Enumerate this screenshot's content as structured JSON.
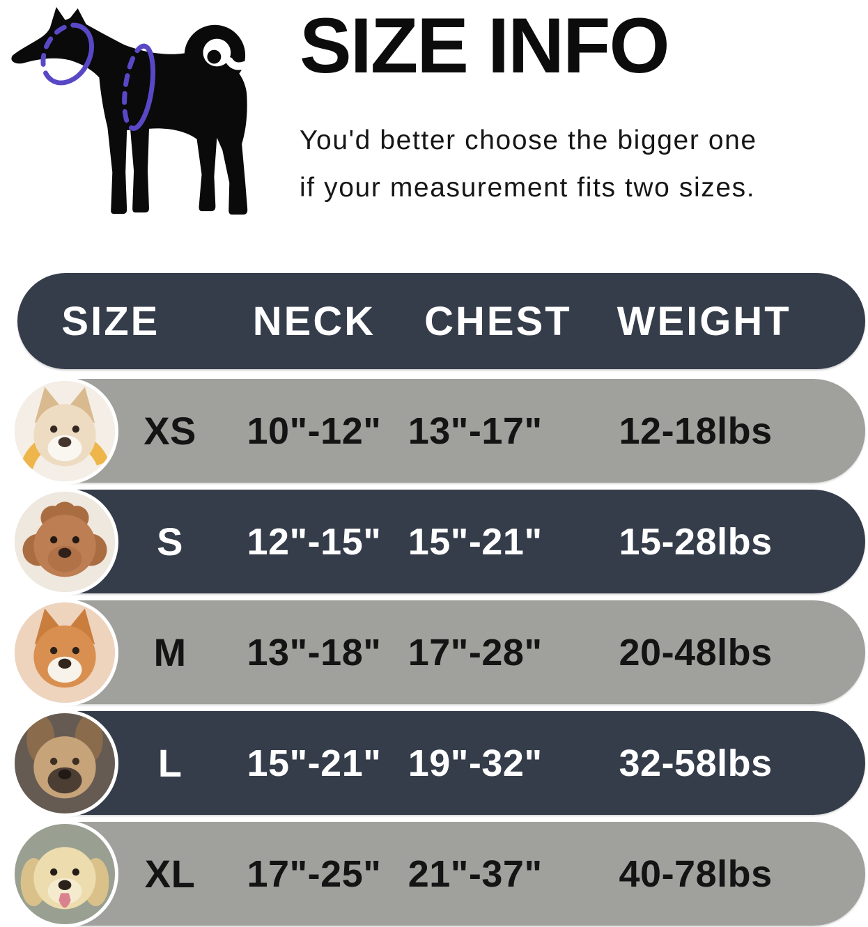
{
  "hero": {
    "title": "SIZE INFO",
    "subtitle_line1": "You'd better choose the bigger one",
    "subtitle_line2": "if your measurement fits two sizes.",
    "diagram": {
      "description": "black dog silhouette with measuring rings around neck and chest",
      "silhouette_color": "#0a0a0a",
      "ring_color": "#5948c6"
    }
  },
  "colors": {
    "background": "#ffffff",
    "dark_navy": "#353d4b",
    "gray": "#a0a09c",
    "text_dark": "#141414",
    "text_light": "#ffffff",
    "photo_ring": "#ffffff"
  },
  "table": {
    "columns": [
      "SIZE",
      "NECK",
      "CHEST",
      "WEIGHT"
    ],
    "rows": [
      {
        "size": "XS",
        "neck": "10\"-12\"",
        "chest": "13\"-17\"",
        "weight": "12-18lbs",
        "theme": "gray",
        "photo": "pomeranian-puppy-photo",
        "palette": {
          "ears": "point",
          "bg": "#f4eee6",
          "arc": "#eeb54a",
          "fur": "#eddcc2",
          "ear": "#d9b98e",
          "muzzle": "#faf6f0",
          "nose": "#44362c",
          "eye": "#32281f"
        }
      },
      {
        "size": "S",
        "neck": "12\"-15\"",
        "chest": "15\"-21\"",
        "weight": "15-28lbs",
        "theme": "dark",
        "photo": "toy-poodle-photo",
        "palette": {
          "ears": "poof",
          "bg": "#efe8df",
          "fur": "#bc7e52",
          "ear": "#aa6d42",
          "muzzle": "#b27248",
          "nose": "#2f211a",
          "eye": "#231812"
        }
      },
      {
        "size": "M",
        "neck": "13\"-18\"",
        "chest": "17\"-28\"",
        "weight": "20-48lbs",
        "theme": "gray",
        "photo": "shiba-inu-photo",
        "palette": {
          "ears": "point",
          "bg": "#eed3bd",
          "fur": "#d98f4f",
          "ear": "#c97e3e",
          "muzzle": "#f8f3ea",
          "nose": "#33261d",
          "eye": "#2c211a"
        }
      },
      {
        "size": "L",
        "neck": "15\"-21\"",
        "chest": "19\"-32\"",
        "weight": "32-58lbs",
        "theme": "dark",
        "photo": "french-bulldog-photo",
        "palette": {
          "ears": "bat",
          "bg": "#655b52",
          "fur": "#c7a379",
          "ear": "#8a6b4c",
          "muzzle": "#4c3e33",
          "nose": "#221a14",
          "eye": "#3c2e22"
        }
      },
      {
        "size": "XL",
        "neck": "17\"-25\"",
        "chest": "21\"-37\"",
        "weight": "40-78lbs",
        "theme": "gray",
        "photo": "labrador-photo",
        "palette": {
          "ears": "drop",
          "bg": "#99a091",
          "fur": "#ecdcae",
          "ear": "#d9c189",
          "muzzle": "#f4ebcf",
          "nose": "#2b231b",
          "eye": "#241d15",
          "tongue": "#d9818e"
        }
      }
    ]
  },
  "chart_data": {
    "type": "table",
    "title": "SIZE INFO",
    "columns": [
      "SIZE",
      "NECK",
      "CHEST",
      "WEIGHT"
    ],
    "rows": [
      [
        "XS",
        "10\"-12\"",
        "13\"-17\"",
        "12-18lbs"
      ],
      [
        "S",
        "12\"-15\"",
        "15\"-21\"",
        "15-28lbs"
      ],
      [
        "M",
        "13\"-18\"",
        "17\"-28\"",
        "20-48lbs"
      ],
      [
        "L",
        "15\"-21\"",
        "19\"-32\"",
        "32-58lbs"
      ],
      [
        "XL",
        "17\"-25\"",
        "21\"-37\"",
        "40-78lbs"
      ]
    ]
  }
}
